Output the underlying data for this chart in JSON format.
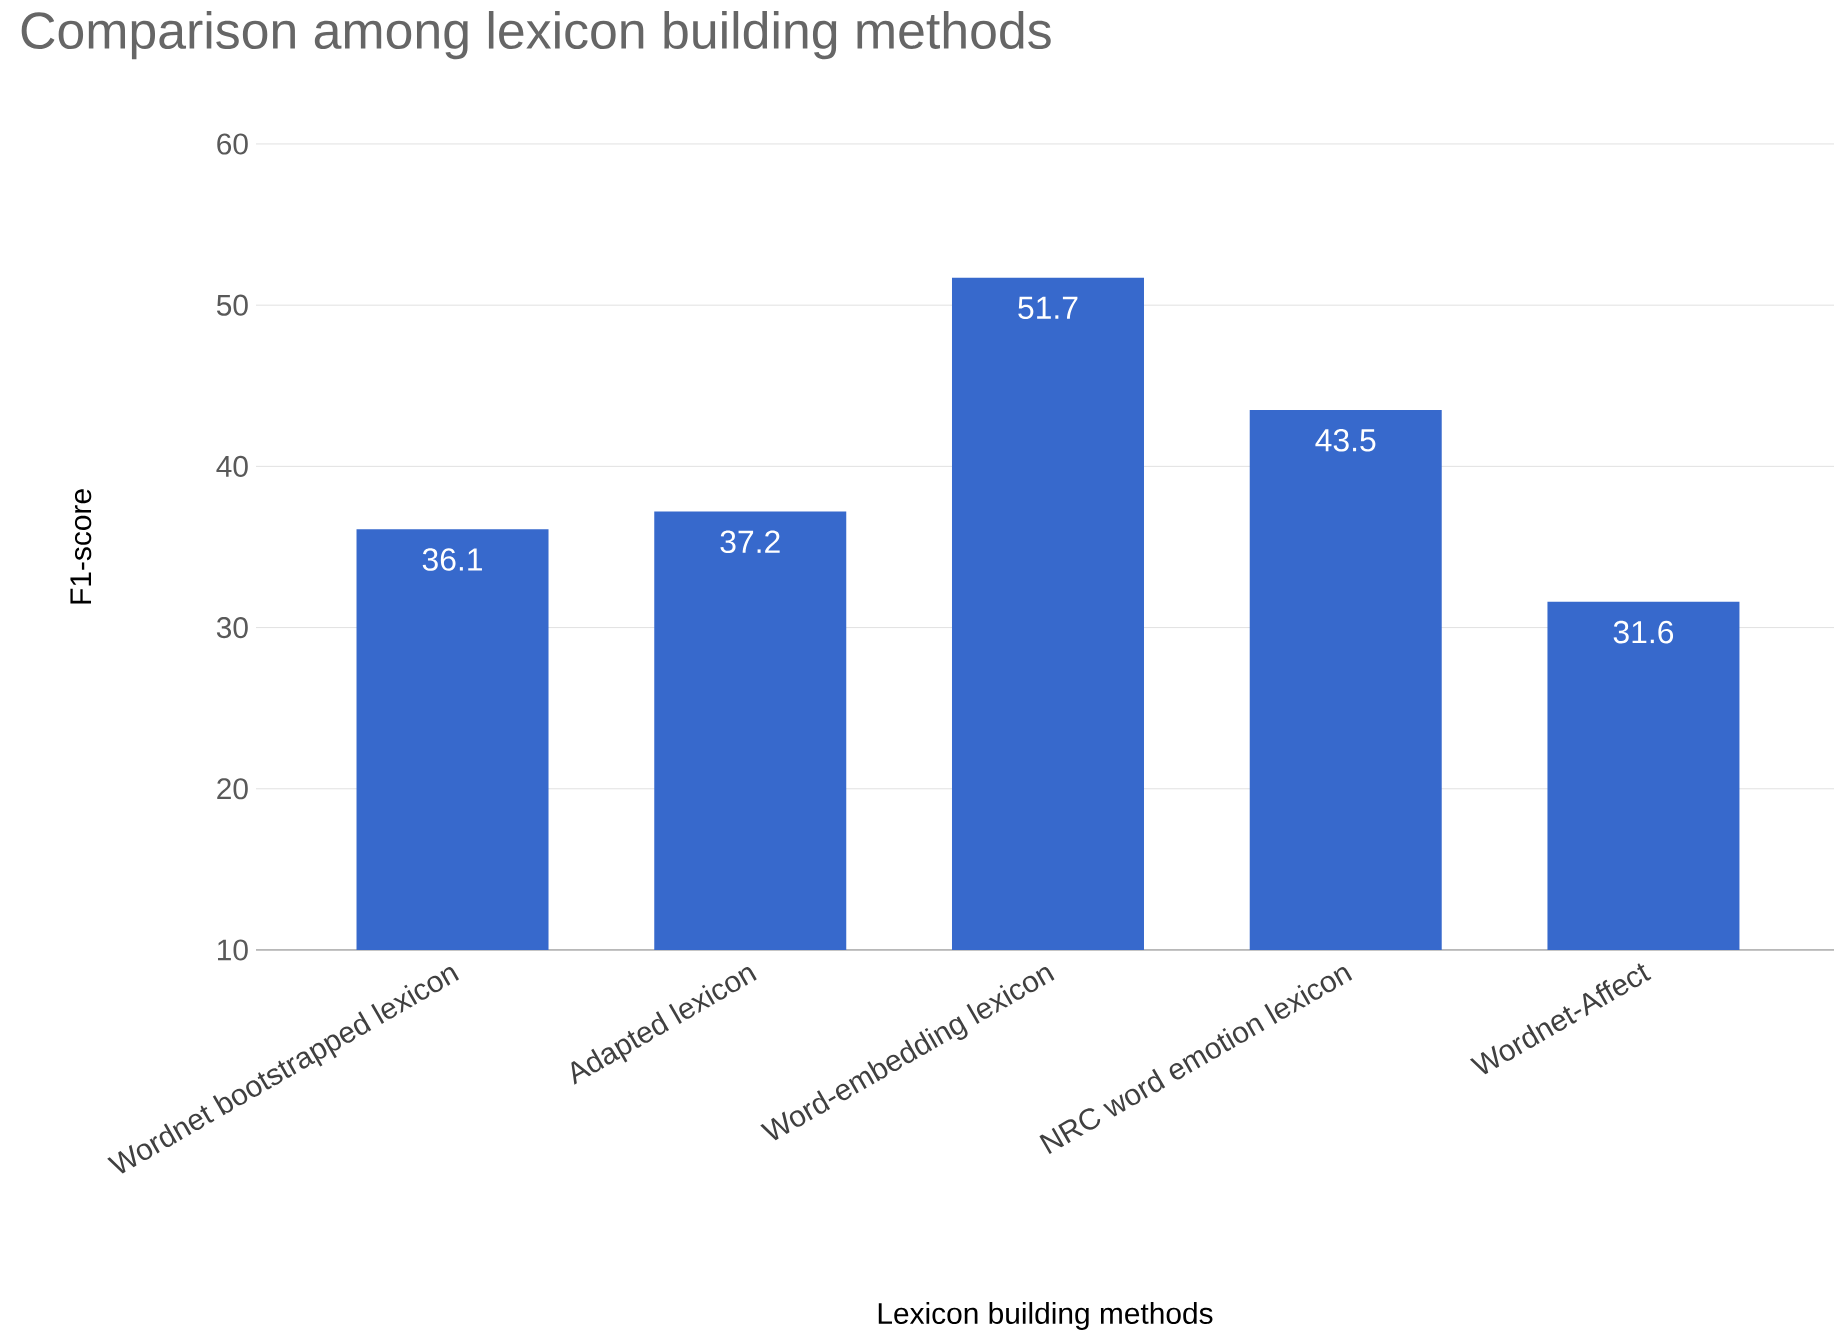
{
  "chart_data": {
    "type": "bar",
    "title": "Comparison among lexicon building methods",
    "xlabel": "Lexicon building methods",
    "ylabel": "F1-score",
    "categories": [
      "Wordnet bootstrapped lexicon",
      "Adapted lexicon",
      "Word-embedding lexicon",
      "NRC word emotion lexicon",
      "Wordnet-Affect"
    ],
    "values": [
      36.1,
      37.2,
      51.7,
      43.5,
      31.6
    ],
    "color": "#3769cc",
    "ylim": [
      10,
      60
    ],
    "yticks": [
      10,
      20,
      30,
      40,
      50,
      60
    ],
    "grid": "y",
    "data_labels": true
  }
}
